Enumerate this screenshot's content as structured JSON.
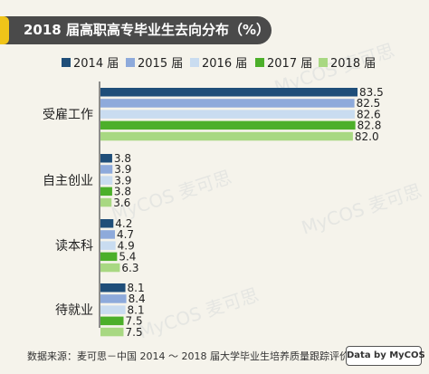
{
  "title": "2018 届高职高专毕业生去向分布（%）",
  "footer": "数据来源：麦可思－中国 2014 ～ 2018 届大学毕业生培养质量跟踪评价。",
  "badge": "Data by MyCOS",
  "watermark": "MyCOS 麦可思",
  "colors": {
    "background": "#f5f3eb",
    "title_bar": "#4a4a4a",
    "title_accent": "#f0c419"
  },
  "chart_data": {
    "type": "bar",
    "orientation": "horizontal",
    "categories": [
      "受雇工作",
      "自主创业",
      "读本科",
      "待就业"
    ],
    "series": [
      {
        "name": "2014 届",
        "color": "#1f4e79",
        "values": [
          83.5,
          3.8,
          4.2,
          8.1
        ]
      },
      {
        "name": "2015 届",
        "color": "#8eaadb",
        "values": [
          82.5,
          3.9,
          4.7,
          8.4
        ]
      },
      {
        "name": "2016 届",
        "color": "#c9dcf0",
        "values": [
          82.6,
          3.9,
          4.9,
          8.1
        ]
      },
      {
        "name": "2017 届",
        "color": "#4caf2a",
        "values": [
          82.8,
          3.8,
          5.4,
          7.5
        ]
      },
      {
        "name": "2018 届",
        "color": "#a8d882",
        "values": [
          82.0,
          3.6,
          6.3,
          7.5
        ]
      }
    ],
    "legend_position": "top",
    "grid": false
  }
}
